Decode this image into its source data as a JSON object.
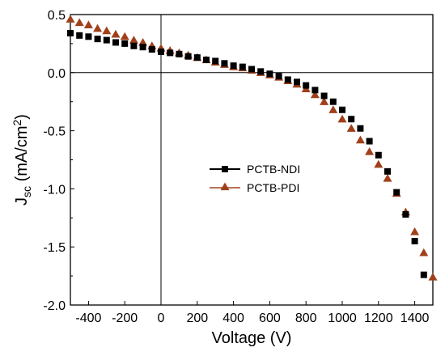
{
  "chart_data": {
    "type": "scatter",
    "xlabel": "Voltage (V)",
    "ylabel": {
      "main": "J",
      "sub": "sc",
      "unit_prefix": " (mA/cm",
      "sup": "2",
      "unit_suffix": ")"
    },
    "xlim": [
      -500,
      1500
    ],
    "ylim": [
      -2.0,
      0.5
    ],
    "x_ticks": [
      -400,
      -200,
      0,
      200,
      400,
      600,
      800,
      1000,
      1200,
      1400
    ],
    "x_tick_labels": [
      "-400",
      "-200",
      "0",
      "200",
      "400",
      "600",
      "800",
      "1000",
      "1200",
      "1400"
    ],
    "y_ticks": [
      0.5,
      0.0,
      -0.5,
      -1.0,
      -1.5,
      -2.0
    ],
    "y_tick_labels": [
      "0.5",
      "0.0",
      "-0.5",
      "-1.0",
      "-1.5",
      "-2.0"
    ],
    "grid": false,
    "legend_position": "center-left",
    "series": [
      {
        "name": "PCTB-NDI",
        "marker": "square",
        "color": "#000000",
        "x": [
          -500,
          -450,
          -400,
          -350,
          -300,
          -250,
          -200,
          -150,
          -100,
          -50,
          0,
          50,
          100,
          150,
          200,
          250,
          300,
          350,
          400,
          450,
          500,
          550,
          600,
          650,
          700,
          750,
          800,
          850,
          900,
          950,
          1000,
          1050,
          1100,
          1150,
          1200,
          1250,
          1300,
          1350,
          1400,
          1450
        ],
        "y": [
          0.34,
          0.32,
          0.31,
          0.29,
          0.28,
          0.26,
          0.25,
          0.23,
          0.22,
          0.2,
          0.18,
          0.17,
          0.16,
          0.14,
          0.13,
          0.11,
          0.1,
          0.08,
          0.06,
          0.05,
          0.03,
          0.01,
          -0.01,
          -0.03,
          -0.06,
          -0.08,
          -0.11,
          -0.15,
          -0.2,
          -0.25,
          -0.32,
          -0.4,
          -0.48,
          -0.59,
          -0.71,
          -0.85,
          -1.03,
          -1.22,
          -1.45,
          -1.74
        ]
      },
      {
        "name": "PCTB-PDI",
        "marker": "triangle",
        "color": "#a0401a",
        "x": [
          -500,
          -450,
          -400,
          -350,
          -300,
          -250,
          -200,
          -150,
          -100,
          -50,
          0,
          50,
          100,
          150,
          200,
          250,
          300,
          350,
          400,
          450,
          500,
          550,
          600,
          650,
          700,
          750,
          800,
          850,
          900,
          950,
          1000,
          1050,
          1100,
          1150,
          1200,
          1250,
          1300,
          1350,
          1400,
          1450,
          1500
        ],
        "y": [
          0.46,
          0.43,
          0.41,
          0.38,
          0.36,
          0.33,
          0.31,
          0.28,
          0.26,
          0.23,
          0.21,
          0.19,
          0.17,
          0.15,
          0.13,
          0.11,
          0.09,
          0.07,
          0.05,
          0.04,
          0.02,
          0.0,
          -0.02,
          -0.04,
          -0.07,
          -0.1,
          -0.14,
          -0.19,
          -0.25,
          -0.32,
          -0.4,
          -0.48,
          -0.58,
          -0.68,
          -0.79,
          -0.91,
          -1.04,
          -1.2,
          -1.37,
          -1.55,
          -1.76
        ]
      }
    ]
  }
}
